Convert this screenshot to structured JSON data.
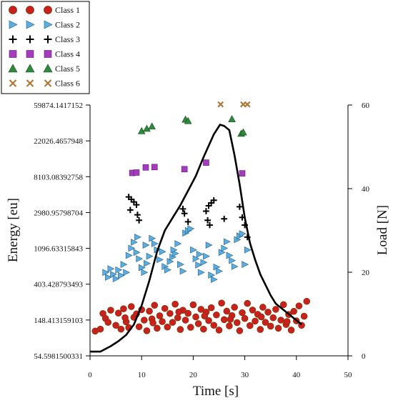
{
  "chart_data": {
    "type": "scatter",
    "xlabel": "Time [s]",
    "ylabel": "Energy [eu]",
    "y2label": "Load [N]",
    "xlim": [
      0,
      50
    ],
    "ylim_log": [
      54.5981500331,
      59874.1417152
    ],
    "y2lim": [
      0,
      60
    ],
    "x_ticks": [
      "0",
      "10",
      "20",
      "30",
      "40",
      "50"
    ],
    "y_ticks": [
      "54.5981500331",
      "148.413159103",
      "403.428793493",
      "1096.63315843",
      "2980.95798704",
      "8103.08392758",
      "22026.4657948",
      "59874.1417152"
    ],
    "y2_ticks": [
      "0",
      "20",
      "40",
      "60"
    ],
    "legend_position": "top-left",
    "series": [
      {
        "name": "Class 1",
        "marker": "circle",
        "color": "#cc1f1f",
        "edge": "#7a3a00",
        "points": [
          [
            1,
            109
          ],
          [
            2,
            115
          ],
          [
            3,
            155
          ],
          [
            3.5,
            139
          ],
          [
            4,
            195
          ],
          [
            5,
            128
          ],
          [
            5.5,
            180
          ],
          [
            6,
            115
          ],
          [
            6.5,
            203
          ],
          [
            7,
            141
          ],
          [
            7.5,
            120
          ],
          [
            8,
            216
          ],
          [
            8.5,
            160
          ],
          [
            9,
            176
          ],
          [
            9.5,
            123
          ],
          [
            10,
            198
          ],
          [
            10.5,
            148
          ],
          [
            11,
            110
          ],
          [
            11.5,
            190
          ],
          [
            12,
            153
          ],
          [
            12.5,
            224
          ],
          [
            13,
            118
          ],
          [
            13.5,
            167
          ],
          [
            14,
            142
          ],
          [
            14.5,
            205
          ],
          [
            15,
            122
          ],
          [
            15.5,
            178
          ],
          [
            16,
            139
          ],
          [
            16.5,
            231
          ],
          [
            17,
            158
          ],
          [
            17.5,
            114
          ],
          [
            18,
            195
          ],
          [
            18.5,
            148
          ],
          [
            19,
            179
          ],
          [
            19.5,
            121
          ],
          [
            20,
            227
          ],
          [
            20.5,
            162
          ],
          [
            21,
            134
          ],
          [
            21.5,
            200
          ],
          [
            22,
            115
          ],
          [
            22.5,
            185
          ],
          [
            23,
            146
          ],
          [
            23.5,
            209
          ],
          [
            24,
            128
          ],
          [
            24.5,
            171
          ],
          [
            25,
            112
          ],
          [
            25.5,
            238
          ],
          [
            26,
            150
          ],
          [
            26.5,
            190
          ],
          [
            27,
            126
          ],
          [
            27.5,
            168
          ],
          [
            28,
            212
          ],
          [
            28.5,
            138
          ],
          [
            29,
            110
          ],
          [
            29.5,
            182
          ],
          [
            30,
            155
          ],
          [
            30.5,
            236
          ],
          [
            31,
            127
          ],
          [
            31.5,
            196
          ],
          [
            32,
            144
          ],
          [
            32.5,
            174
          ],
          [
            33,
            114
          ],
          [
            33.5,
            212
          ],
          [
            34,
            139
          ],
          [
            34.5,
            185
          ],
          [
            35,
            125
          ],
          [
            35.5,
            158
          ],
          [
            36,
            200
          ],
          [
            36.5,
            118
          ],
          [
            37,
            148
          ],
          [
            37.5,
            228
          ],
          [
            38,
            131
          ],
          [
            38.5,
            173
          ],
          [
            39,
            112
          ],
          [
            39.5,
            189
          ],
          [
            40,
            145
          ],
          [
            40.5,
            220
          ],
          [
            41,
            128
          ],
          [
            41.5,
            165
          ],
          [
            42,
            250
          ],
          [
            2.5,
            178
          ],
          [
            6.8,
            158
          ],
          [
            12.2,
            137
          ],
          [
            17.2,
            186
          ],
          [
            22.2,
            166
          ],
          [
            27.2,
            151
          ],
          [
            33.2,
            162
          ],
          [
            38.2,
            142
          ]
        ]
      },
      {
        "name": "Class 2",
        "marker": "triangle-right",
        "color": "#5aaee0",
        "edge": "#2a5f8a",
        "points": [
          [
            3,
            560
          ],
          [
            3.5,
            490
          ],
          [
            4,
            620
          ],
          [
            4.5,
            530
          ],
          [
            5,
            470
          ],
          [
            5.5,
            600
          ],
          [
            6,
            515
          ],
          [
            6.5,
            700
          ],
          [
            7,
            560
          ],
          [
            7.5,
            900
          ],
          [
            8,
            1100
          ],
          [
            8.5,
            1300
          ],
          [
            9,
            980
          ],
          [
            9.5,
            820
          ],
          [
            10,
            640
          ],
          [
            10.5,
            560
          ],
          [
            11,
            720
          ],
          [
            11.5,
            880
          ],
          [
            12,
            1450
          ],
          [
            12.5,
            1250
          ],
          [
            13,
            1050
          ],
          [
            13.5,
            800
          ],
          [
            14,
            1000
          ],
          [
            14.5,
            660
          ],
          [
            15,
            600
          ],
          [
            15.5,
            760
          ],
          [
            16,
            860
          ],
          [
            16.5,
            950
          ],
          [
            17,
            1250
          ],
          [
            17.5,
            700
          ],
          [
            18,
            580
          ],
          [
            18.5,
            1680
          ],
          [
            19,
            1800
          ],
          [
            19.5,
            1900
          ],
          [
            20,
            1050
          ],
          [
            20.5,
            820
          ],
          [
            21,
            690
          ],
          [
            21.5,
            560
          ],
          [
            22,
            740
          ],
          [
            22.5,
            880
          ],
          [
            23,
            1200
          ],
          [
            23.5,
            520
          ],
          [
            24,
            460
          ],
          [
            24.5,
            650
          ],
          [
            25,
            580
          ],
          [
            25.5,
            980
          ],
          [
            26,
            1100
          ],
          [
            26.5,
            1320
          ],
          [
            27,
            900
          ],
          [
            27.5,
            780
          ],
          [
            28,
            660
          ],
          [
            28.5,
            1400
          ],
          [
            29,
            1550
          ],
          [
            29.5,
            1650
          ],
          [
            30,
            700
          ],
          [
            30.5,
            1050
          ],
          [
            9.2,
            1500
          ],
          [
            10.8,
            1200
          ],
          [
            16.2,
            1050
          ],
          [
            21.2,
            930
          ]
        ]
      },
      {
        "name": "Class 3",
        "marker": "plus",
        "color": "#000000",
        "edge": "#000000",
        "points": [
          [
            7.5,
            4600
          ],
          [
            8,
            4300
          ],
          [
            8.5,
            4000
          ],
          [
            9,
            3700
          ],
          [
            7.8,
            3200
          ],
          [
            9.2,
            2800
          ],
          [
            9.5,
            2400
          ],
          [
            18,
            3300
          ],
          [
            18.3,
            2900
          ],
          [
            19,
            2300
          ],
          [
            22.5,
            3100
          ],
          [
            23,
            3600
          ],
          [
            23.5,
            3900
          ],
          [
            24,
            4200
          ],
          [
            22.8,
            2400
          ],
          [
            23.2,
            2100
          ],
          [
            29,
            3500
          ],
          [
            29.5,
            2600
          ],
          [
            30,
            2100
          ],
          [
            30.5,
            1500
          ],
          [
            26,
            2500
          ]
        ]
      },
      {
        "name": "Class 4",
        "marker": "square",
        "color": "#a53cc0",
        "edge": "#5a1a6a",
        "points": [
          [
            8.2,
            9000
          ],
          [
            9,
            9100
          ],
          [
            10.8,
            10500
          ],
          [
            12.5,
            10600
          ],
          [
            18.3,
            10000
          ],
          [
            22.5,
            12000
          ],
          [
            29.5,
            8900
          ]
        ]
      },
      {
        "name": "Class 5",
        "marker": "triangle-up",
        "color": "#2e8b3c",
        "edge": "#174a20",
        "points": [
          [
            10,
            29000
          ],
          [
            11,
            31000
          ],
          [
            12,
            33000
          ],
          [
            18.5,
            40000
          ],
          [
            19,
            38500
          ],
          [
            27.5,
            40500
          ],
          [
            29.3,
            27000
          ],
          [
            29.7,
            28000
          ]
        ]
      },
      {
        "name": "Class 6",
        "marker": "x",
        "color": "#b07838",
        "edge": "#b07838",
        "points": [
          [
            25.3,
            61000
          ],
          [
            29.7,
            61000
          ],
          [
            30.5,
            61000
          ]
        ]
      }
    ],
    "load_curve": {
      "name": "Load",
      "color": "#000000",
      "points": [
        [
          0,
          1
        ],
        [
          2,
          1
        ],
        [
          4,
          2.3
        ],
        [
          5.5,
          3.5
        ],
        [
          7,
          5
        ],
        [
          8.5,
          7.5
        ],
        [
          10,
          12
        ],
        [
          11.5,
          18
        ],
        [
          13,
          25
        ],
        [
          14.5,
          30
        ],
        [
          16,
          33
        ],
        [
          17.5,
          36
        ],
        [
          19,
          39.5
        ],
        [
          20.5,
          43
        ],
        [
          22,
          47.5
        ],
        [
          24,
          53
        ],
        [
          25.2,
          55.3
        ],
        [
          26,
          55
        ],
        [
          27,
          54
        ],
        [
          28,
          48
        ],
        [
          29,
          41
        ],
        [
          30,
          33
        ],
        [
          31,
          27
        ],
        [
          32,
          23
        ],
        [
          33,
          19.5
        ],
        [
          34,
          17
        ],
        [
          35,
          14.5
        ],
        [
          36,
          12.5
        ],
        [
          38,
          10.5
        ],
        [
          40,
          8.5
        ],
        [
          41,
          7.5
        ]
      ]
    },
    "legend": [
      {
        "label": "Class 1",
        "marker": "circle",
        "color": "#cc1f1f",
        "edge": "#7a3a00"
      },
      {
        "label": "Class 2",
        "marker": "triangle-right",
        "color": "#5aaee0",
        "edge": "#2a5f8a"
      },
      {
        "label": "Class 3",
        "marker": "plus",
        "color": "#000000",
        "edge": "#000000"
      },
      {
        "label": "Class 4",
        "marker": "square",
        "color": "#a53cc0",
        "edge": "#5a1a6a"
      },
      {
        "label": "Class 5",
        "marker": "triangle-up",
        "color": "#2e8b3c",
        "edge": "#174a20"
      },
      {
        "label": "Class 6",
        "marker": "x",
        "color": "#b07838",
        "edge": "#b07838"
      }
    ]
  }
}
